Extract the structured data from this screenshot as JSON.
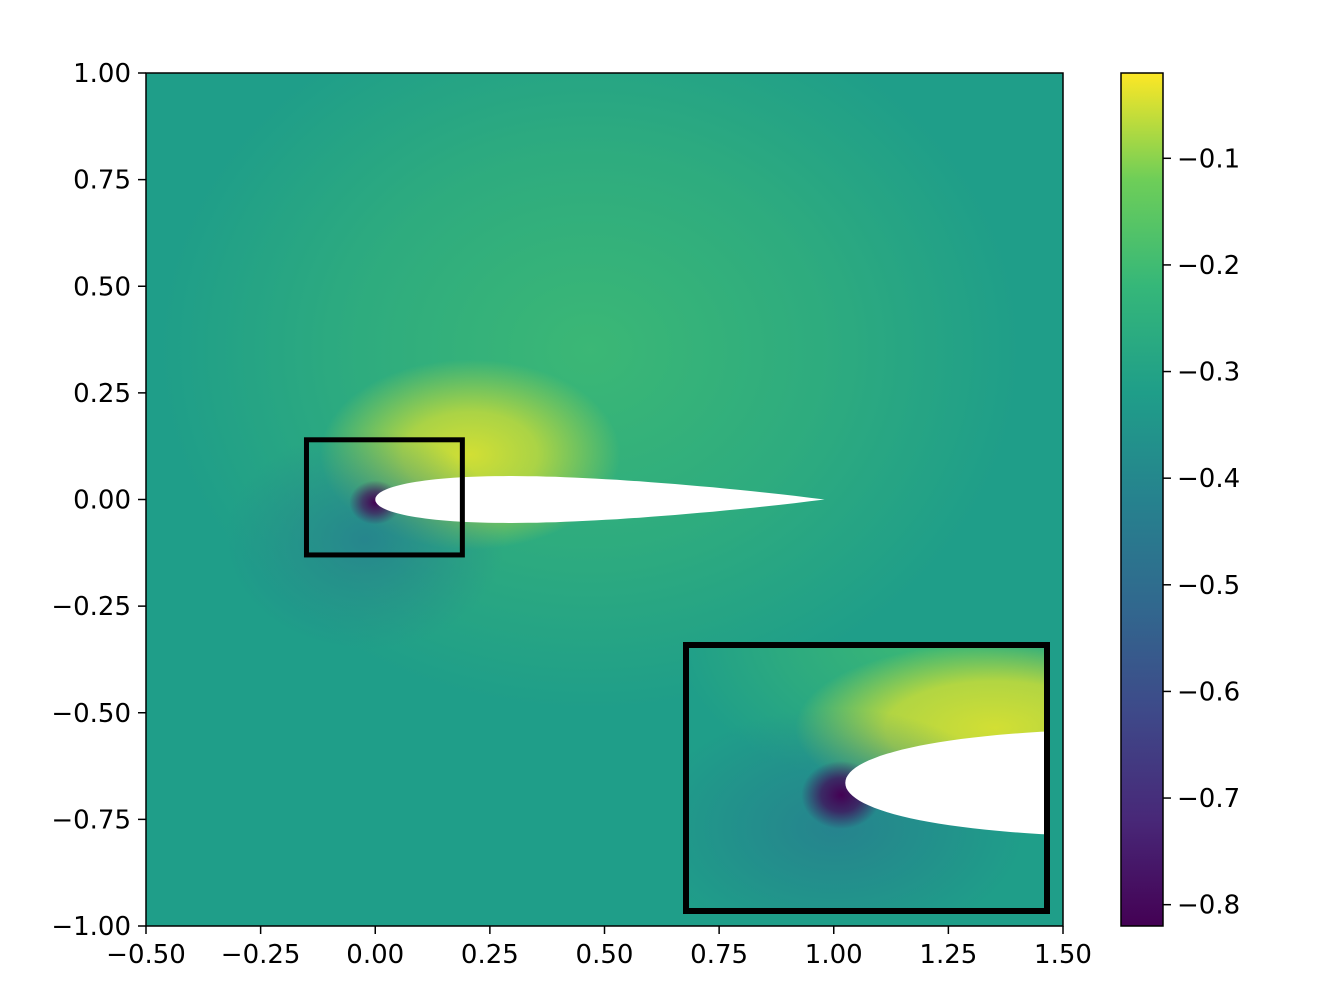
{
  "chart_data": {
    "type": "heatmap",
    "title": "",
    "xlabel": "",
    "ylabel": "",
    "xlim": [
      -0.5,
      1.5
    ],
    "ylim": [
      -1.0,
      1.0
    ],
    "x_ticks": [
      -0.5,
      -0.25,
      0.0,
      0.25,
      0.5,
      0.75,
      1.0,
      1.25,
      1.5
    ],
    "x_tick_labels": [
      "−0.50",
      "−0.25",
      "0.00",
      "0.25",
      "0.50",
      "0.75",
      "1.00",
      "1.25",
      "1.50"
    ],
    "y_ticks": [
      1.0,
      0.75,
      0.5,
      0.25,
      0.0,
      -0.25,
      -0.5,
      -0.75,
      -1.0
    ],
    "y_tick_labels": [
      "1.00",
      "0.75",
      "0.50",
      "0.25",
      "0.00",
      "−0.25",
      "−0.50",
      "−0.75",
      "−1.00"
    ],
    "colormap": "viridis",
    "color_range": [
      -0.82,
      -0.02
    ],
    "colorbar_ticks": [
      -0.1,
      -0.2,
      -0.3,
      -0.4,
      -0.5,
      -0.6,
      -0.7,
      -0.8
    ],
    "colorbar_tick_labels": [
      "−0.1",
      "−0.2",
      "−0.3",
      "−0.4",
      "−0.5",
      "−0.6",
      "−0.7",
      "−0.8"
    ],
    "background_value": -0.32,
    "obstacle": {
      "shape": "airfoil",
      "leading_edge": [
        0.0,
        0.0
      ],
      "trailing_edge": [
        0.98,
        0.0
      ],
      "max_thickness": 0.11,
      "fill_color": "#ffffff"
    },
    "features": {
      "suction_peak_value": -0.05,
      "stagnation_value": -0.82,
      "upper_plume_value": -0.2
    },
    "zoom_region": {
      "xlim": [
        -0.15,
        0.19
      ],
      "ylim": [
        -0.13,
        0.14
      ]
    },
    "inset": {
      "placement": "bottom-right",
      "border_color": "#000000"
    }
  }
}
